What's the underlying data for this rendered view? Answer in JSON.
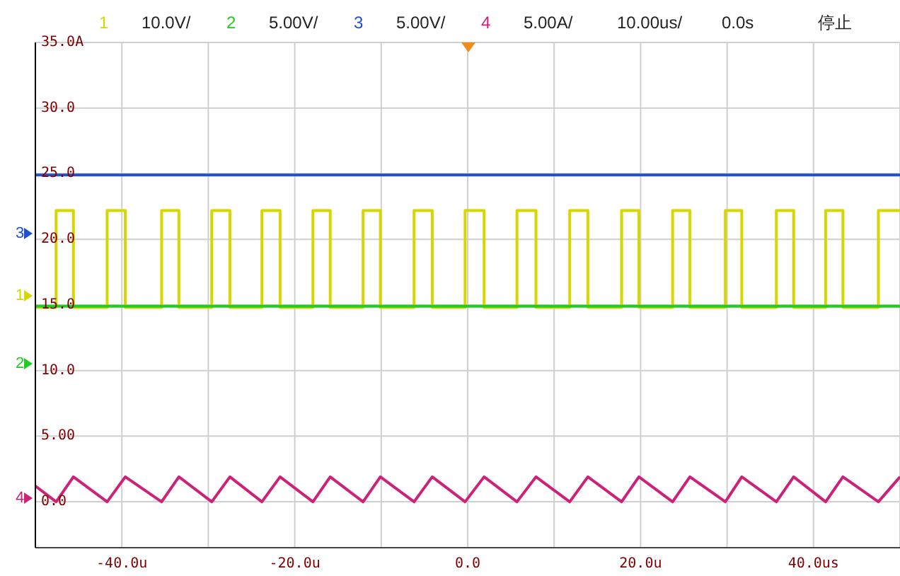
{
  "chart_data": {
    "type": "line",
    "annotations": [
      "1",
      "10.0V/",
      "2",
      "5.00V/",
      "3",
      "5.00V/",
      "4",
      "5.00A/",
      "10.00us/",
      "0.0s",
      "停止",
      "1",
      "2",
      "3",
      "4"
    ],
    "series": [
      {
        "color": "#d6d600",
        "x": [
          -50,
          -47.6,
          -47.6,
          -45.6,
          -45.6,
          -41.7,
          -41.7,
          -39.6,
          -39.6,
          -35.4,
          -35.4,
          -33.4,
          -33.4,
          -29.6,
          -29.6,
          -27.5,
          -27.5,
          -23.8,
          -23.8,
          -21.7,
          -21.7,
          -17.9,
          -17.9,
          -15.9,
          -15.9,
          -12.1,
          -12.1,
          -10.1,
          -10.1,
          -6.2,
          -6.2,
          -4.1,
          -4.1,
          -0.3,
          -0.3,
          1.9,
          1.9,
          5.7,
          5.7,
          7.9,
          7.9,
          11.8,
          11.8,
          13.9,
          13.9,
          17.8,
          17.8,
          19.8,
          19.8,
          23.7,
          23.7,
          25.7,
          25.7,
          29.8,
          29.8,
          31.7,
          31.7,
          35.7,
          35.7,
          37.7,
          37.7,
          41.4,
          41.4,
          43.4,
          43.4,
          47.5,
          47.5,
          50
        ],
        "values": [
          14.8,
          14.8,
          22.2,
          22.2,
          14.8,
          14.8,
          22.2,
          22.2,
          14.8,
          14.8,
          22.2,
          22.2,
          14.8,
          14.8,
          22.2,
          22.2,
          14.8,
          14.8,
          22.2,
          22.2,
          14.8,
          14.8,
          22.2,
          22.2,
          14.8,
          14.8,
          22.2,
          22.2,
          14.8,
          14.8,
          22.2,
          22.2,
          14.8,
          14.8,
          22.2,
          22.2,
          14.8,
          14.8,
          22.2,
          22.2,
          14.8,
          14.8,
          22.2,
          22.2,
          14.8,
          14.8,
          22.2,
          22.2,
          14.8,
          14.8,
          22.2,
          22.2,
          14.8,
          14.8,
          22.2,
          22.2,
          14.8,
          14.8,
          22.2,
          22.2,
          14.8,
          14.8,
          22.2,
          22.2,
          14.8,
          14.8,
          22.2,
          22.2
        ]
      },
      {
        "color": "#22cc22",
        "x": [
          -50,
          50
        ],
        "values": [
          14.9,
          14.9
        ]
      },
      {
        "color": "#2050d0",
        "x": [
          -50,
          50
        ],
        "values": [
          24.9,
          24.9
        ]
      },
      {
        "color": "#cc2277",
        "x": [
          -50,
          -47.6,
          -45.6,
          -41.7,
          -39.6,
          -35.4,
          -33.4,
          -29.6,
          -27.5,
          -23.8,
          -21.7,
          -17.9,
          -15.9,
          -12.1,
          -10.1,
          -6.2,
          -4.1,
          -0.3,
          1.9,
          5.7,
          7.9,
          11.8,
          13.9,
          17.8,
          19.8,
          23.7,
          25.7,
          29.8,
          31.7,
          35.7,
          37.7,
          41.4,
          43.4,
          47.5,
          50
        ],
        "values": [
          1.2,
          0,
          1.9,
          0,
          1.9,
          0,
          1.9,
          0,
          1.9,
          0,
          1.9,
          0,
          1.9,
          0,
          1.9,
          0,
          1.9,
          0,
          1.9,
          0,
          1.9,
          0,
          1.9,
          0,
          1.9,
          0,
          1.9,
          0,
          1.9,
          0,
          1.9,
          0,
          1.9,
          0,
          1.9
        ]
      }
    ],
    "xlim": [
      -50,
      50
    ],
    "xticks": [
      {
        "value": -50,
        "label": null
      },
      {
        "value": -40,
        "label": "-40.0u"
      },
      {
        "value": -30,
        "label": null
      },
      {
        "value": -20,
        "label": "-20.0u"
      },
      {
        "value": -10,
        "label": null
      },
      {
        "value": 0,
        "label": "0.0"
      },
      {
        "value": 10,
        "label": null
      },
      {
        "value": 20,
        "label": "20.0u"
      },
      {
        "value": 30,
        "label": null
      },
      {
        "value": 40,
        "label": "40.0us"
      },
      {
        "value": 50,
        "label": null
      }
    ],
    "ylim": [
      -3.5,
      35
    ],
    "yticks": [
      {
        "value": 0,
        "label": "0.0"
      },
      {
        "value": 5,
        "label": "5.00"
      },
      {
        "value": 10,
        "label": "10.0"
      },
      {
        "value": 15,
        "label": "15.0"
      },
      {
        "value": 20,
        "label": "20.0"
      },
      {
        "value": 25,
        "label": "25.0"
      },
      {
        "value": 30,
        "label": "30.0"
      },
      {
        "value": 35,
        "label": "35.0A"
      }
    ],
    "grid": true,
    "marker": "none",
    "line_style": "solid"
  }
}
